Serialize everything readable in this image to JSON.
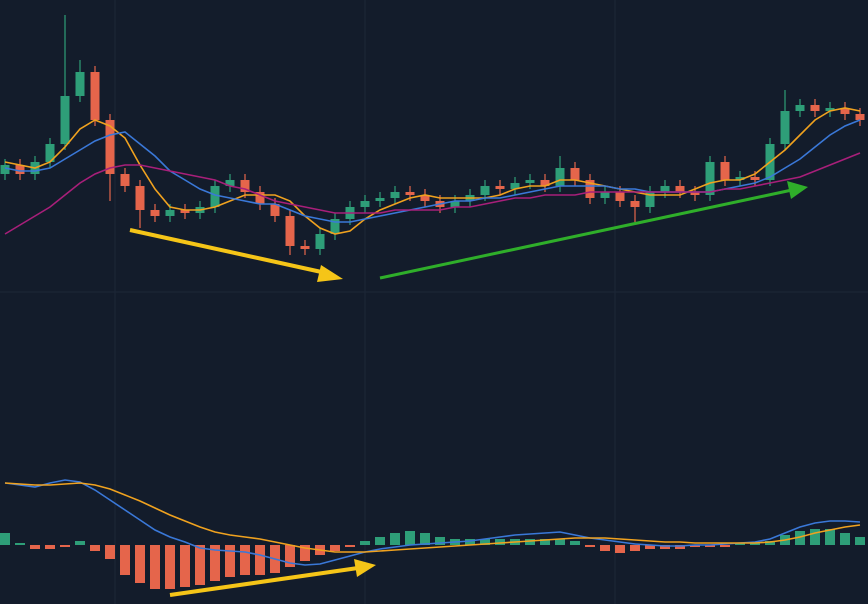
{
  "chart_data": [
    {
      "type": "candlestick",
      "up_color": "#2e9e78",
      "down_color": "#e5654b",
      "ylim": [
        0,
        100
      ],
      "open": [
        42,
        45,
        42,
        46,
        52,
        68,
        76,
        60,
        42,
        38,
        30,
        28,
        30,
        29,
        31,
        38,
        40,
        36,
        32,
        28,
        18,
        17,
        22,
        27,
        31,
        33,
        34,
        36,
        35,
        33,
        31,
        33,
        35,
        38,
        37,
        39,
        40,
        38,
        44,
        40,
        34,
        36,
        33,
        31,
        36,
        38,
        36,
        35,
        46,
        40,
        41,
        40,
        52,
        63,
        65,
        63,
        64,
        62
      ],
      "high": [
        47,
        47,
        48,
        54,
        95,
        80,
        78,
        62,
        44,
        40,
        32,
        32,
        32,
        33,
        40,
        42,
        42,
        38,
        34,
        30,
        20,
        24,
        29,
        33,
        35,
        36,
        38,
        38,
        37,
        35,
        35,
        37,
        40,
        40,
        41,
        42,
        42,
        48,
        46,
        42,
        38,
        38,
        35,
        38,
        40,
        40,
        38,
        48,
        48,
        43,
        43,
        54,
        70,
        67,
        67,
        66,
        66,
        64
      ],
      "low": [
        40,
        40,
        40,
        44,
        50,
        66,
        58,
        33,
        36,
        24,
        26,
        26,
        27,
        27,
        29,
        36,
        34,
        30,
        26,
        15,
        15,
        15,
        20,
        25,
        29,
        31,
        32,
        33,
        31,
        29,
        29,
        31,
        33,
        35,
        35,
        37,
        36,
        36,
        38,
        32,
        32,
        31,
        26,
        29,
        34,
        34,
        33,
        33,
        38,
        38,
        38,
        38,
        50,
        61,
        61,
        61,
        60,
        58
      ],
      "close": [
        45,
        42,
        46,
        52,
        68,
        76,
        60,
        42,
        38,
        30,
        28,
        30,
        29,
        31,
        38,
        40,
        36,
        32,
        28,
        18,
        17,
        22,
        27,
        31,
        33,
        34,
        36,
        35,
        33,
        31,
        33,
        35,
        38,
        37,
        39,
        40,
        38,
        44,
        40,
        34,
        36,
        33,
        31,
        36,
        38,
        36,
        35,
        46,
        40,
        41,
        40,
        52,
        63,
        65,
        63,
        64,
        62,
        60
      ],
      "series": [
        {
          "color": "#f0a21f",
          "values": [
            46,
            45,
            44,
            46,
            51,
            57,
            60,
            58,
            54,
            45,
            37,
            31,
            30,
            30,
            31,
            33,
            35,
            35,
            35,
            33,
            28,
            24,
            22,
            23,
            27,
            30,
            32,
            34,
            35,
            34,
            34,
            34,
            34,
            35,
            37,
            38,
            38,
            40,
            40,
            39,
            38,
            37,
            36,
            35,
            35,
            35,
            37,
            39,
            40,
            40,
            42,
            46,
            50,
            55,
            60,
            63,
            64,
            63
          ]
        },
        {
          "color": "#3a78d8",
          "values": [
            44,
            43,
            43,
            44,
            47,
            50,
            53,
            55,
            56,
            52,
            48,
            43,
            40,
            37,
            35,
            34,
            33,
            32,
            32,
            30,
            28,
            27,
            26,
            26,
            27,
            28,
            29,
            30,
            31,
            32,
            33,
            33,
            34,
            34,
            35,
            36,
            37,
            38,
            38,
            38,
            38,
            37,
            37,
            36,
            36,
            36,
            36,
            36,
            37,
            38,
            39,
            41,
            44,
            47,
            51,
            55,
            58,
            60
          ]
        },
        {
          "color": "#a81f7a",
          "values": [
            22,
            25,
            28,
            31,
            35,
            39,
            42,
            44,
            45,
            45,
            44,
            43,
            42,
            41,
            40,
            38,
            37,
            35,
            33,
            32,
            31,
            30,
            29,
            29,
            29,
            29,
            30,
            30,
            30,
            30,
            31,
            31,
            32,
            33,
            34,
            34,
            35,
            35,
            35,
            36,
            36,
            36,
            36,
            36,
            36,
            36,
            36,
            36,
            37,
            37,
            38,
            39,
            40,
            41,
            43,
            45,
            47,
            49
          ]
        }
      ]
    },
    {
      "type": "macd",
      "ylim": [
        -59,
        105
      ],
      "up_color": "#2e9e78",
      "down_color": "#e5654b",
      "histogram": [
        12,
        2,
        -4,
        -4,
        -2,
        4,
        -6,
        -14,
        -30,
        -38,
        -44,
        -44,
        -42,
        -40,
        -36,
        -32,
        -30,
        -30,
        -28,
        -22,
        -16,
        -10,
        -6,
        -2,
        4,
        8,
        12,
        14,
        12,
        8,
        6,
        6,
        6,
        6,
        6,
        6,
        6,
        6,
        4,
        -2,
        -6,
        -8,
        -6,
        -4,
        -4,
        -4,
        -2,
        -2,
        -2,
        2,
        2,
        4,
        10,
        14,
        16,
        16,
        12,
        8
      ],
      "series": [
        {
          "color": "#3a78d8",
          "values": [
            62,
            60,
            58,
            62,
            65,
            63,
            55,
            45,
            35,
            25,
            15,
            8,
            3,
            -3,
            -5,
            -6,
            -7,
            -10,
            -14,
            -18,
            -20,
            -19,
            -15,
            -11,
            -7,
            -4,
            -2,
            0,
            1,
            2,
            3,
            4,
            6,
            8,
            10,
            11,
            12,
            13,
            10,
            7,
            5,
            3,
            1,
            0,
            -1,
            -1,
            0,
            0,
            1,
            2,
            3,
            6,
            12,
            18,
            22,
            24,
            24,
            23
          ]
        },
        {
          "color": "#f0a21f",
          "values": [
            62,
            61,
            60,
            60,
            61,
            62,
            60,
            56,
            50,
            44,
            37,
            30,
            24,
            18,
            13,
            10,
            8,
            6,
            3,
            0,
            -3,
            -5,
            -7,
            -7,
            -7,
            -6,
            -5,
            -4,
            -3,
            -2,
            -1,
            0,
            1,
            2,
            3,
            4,
            5,
            6,
            7,
            7,
            7,
            6,
            5,
            4,
            3,
            3,
            2,
            2,
            2,
            2,
            2,
            3,
            5,
            8,
            12,
            15,
            18,
            20
          ]
        }
      ]
    }
  ]
}
